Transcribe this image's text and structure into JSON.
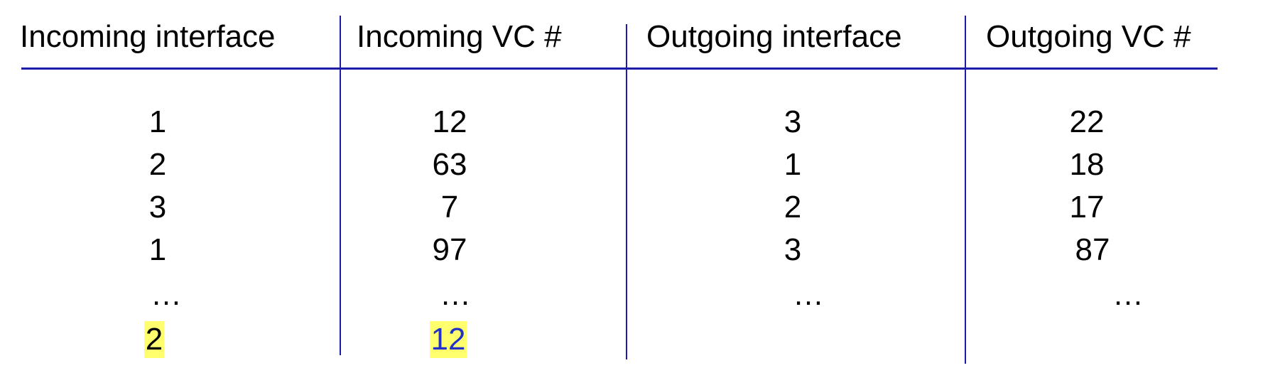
{
  "table": {
    "headers": [
      "Incoming interface",
      "Incoming VC #",
      "Outgoing interface",
      "Outgoing VC #"
    ],
    "rows": [
      [
        "1",
        "12",
        "3",
        "22"
      ],
      [
        "2",
        "63",
        "1",
        "18"
      ],
      [
        "3",
        "7",
        "2",
        "17"
      ],
      [
        "1",
        "97",
        "3",
        "87"
      ],
      [
        "…",
        "…",
        "…",
        "…"
      ]
    ],
    "highlighted_row": {
      "incoming_interface": "2",
      "incoming_vc": "12"
    }
  },
  "colors": {
    "rule": "#1c1ca8",
    "highlight": "#ffff6e",
    "highlight_text_vc": "#2232c8"
  }
}
